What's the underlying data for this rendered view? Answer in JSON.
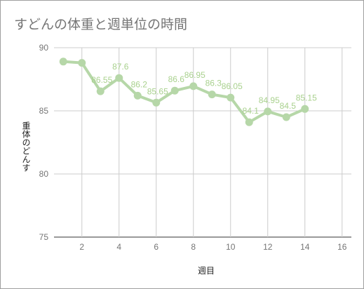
{
  "chart_data": {
    "type": "line",
    "title": "すどんの体重と週単位の時間",
    "xlabel": "週目",
    "ylabel": "重体のどんす",
    "xlim": [
      0.5,
      16.5
    ],
    "ylim": [
      75,
      90
    ],
    "x_ticks": [
      2,
      4,
      6,
      8,
      10,
      12,
      14,
      16
    ],
    "y_ticks": [
      75,
      80,
      85,
      90
    ],
    "grid": true,
    "legend": "none",
    "series": [
      {
        "x": [
          1,
          2,
          3,
          4,
          5,
          6,
          7,
          8,
          9,
          10,
          11,
          12,
          13,
          14
        ],
        "values": [
          88.9,
          88.8,
          86.55,
          87.6,
          86.2,
          85.65,
          86.6,
          86.95,
          86.3,
          86.05,
          84.1,
          84.95,
          84.5,
          85.15
        ],
        "labels": [
          "",
          "",
          "86.55",
          "87.6",
          "86.2",
          "85.65",
          "86.6",
          "86.95",
          "86.3",
          "86.05",
          "84.1",
          "84.95",
          "84.5",
          "85.15"
        ],
        "color": "#b6d7a8"
      }
    ]
  }
}
